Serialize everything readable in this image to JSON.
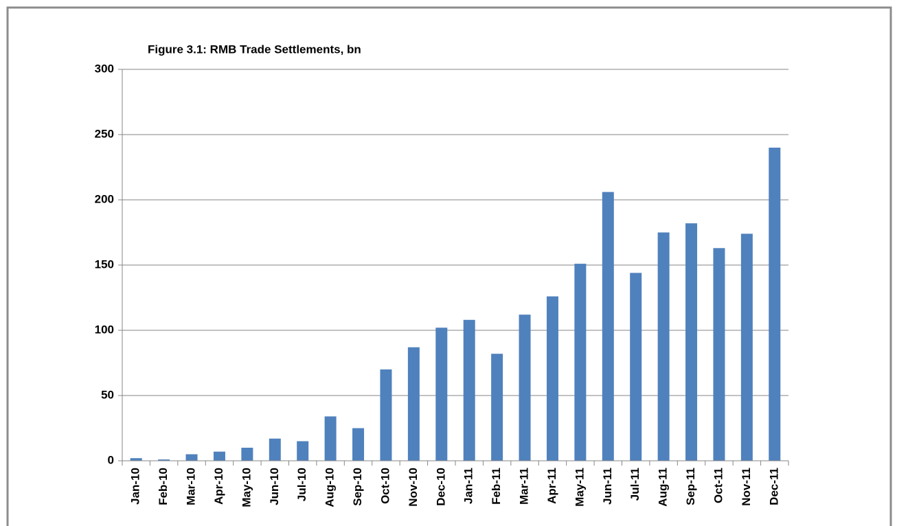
{
  "chart_data": {
    "type": "bar",
    "title": "Figure 3.1: RMB Trade Settlements, bn",
    "categories": [
      "Jan-10",
      "Feb-10",
      "Mar-10",
      "Apr-10",
      "May-10",
      "Jun-10",
      "Jul-10",
      "Aug-10",
      "Sep-10",
      "Oct-10",
      "Nov-10",
      "Dec-10",
      "Jan-11",
      "Feb-11",
      "Mar-11",
      "Apr-11",
      "May-11",
      "Jun-11",
      "Jul-11",
      "Aug-11",
      "Sep-11",
      "Oct-11",
      "Nov-11",
      "Dec-11"
    ],
    "values": [
      2,
      1,
      5,
      7,
      10,
      17,
      15,
      34,
      25,
      70,
      87,
      102,
      108,
      82,
      112,
      126,
      151,
      206,
      144,
      175,
      182,
      163,
      174,
      240
    ],
    "color": "#4f81bd",
    "ylim": [
      0,
      300
    ],
    "yticks": [
      0,
      50,
      100,
      150,
      200,
      250,
      300
    ],
    "grid": true
  }
}
